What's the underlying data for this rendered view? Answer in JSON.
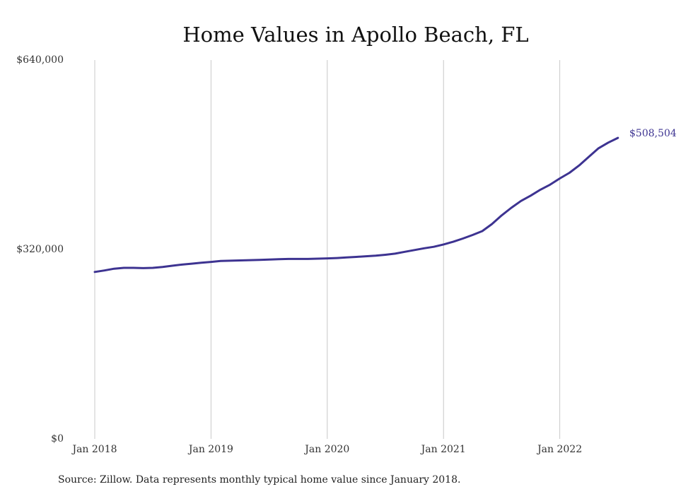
{
  "chart_data": {
    "type": "line",
    "title": "Home Values in Apollo Beach, FL",
    "source": "Source: Zillow. Data represents monthly typical home value since January 2018.",
    "x_start": "Jan 2018",
    "x_tick_labels": [
      "Jan 2018",
      "Jan 2019",
      "Jan 2020",
      "Jan 2021",
      "Jan 2022"
    ],
    "y_tick_labels": [
      "$640,000",
      "$320,000",
      "$0"
    ],
    "ylim": [
      0,
      640000
    ],
    "grid": "vertical",
    "line_color": "#3d3391",
    "end_label": "$508,504",
    "series": [
      {
        "values": [
          282000,
          284500,
          287500,
          289000,
          289000,
          288500,
          289000,
          290500,
          292500,
          294500,
          296000,
          297500,
          299000,
          300500,
          301000,
          301500,
          302000,
          302500,
          303000,
          303500,
          304000,
          304000,
          304000,
          304500,
          305000,
          305500,
          306500,
          307500,
          308500,
          309500,
          311000,
          313000,
          316000,
          319000,
          322000,
          324500,
          328500,
          333000,
          338500,
          344500,
          351000,
          363000,
          377500,
          390500,
          402000,
          411000,
          421000,
          429500,
          440000,
          449500,
          462000,
          476500,
          491000,
          500500,
          508504
        ]
      }
    ]
  }
}
